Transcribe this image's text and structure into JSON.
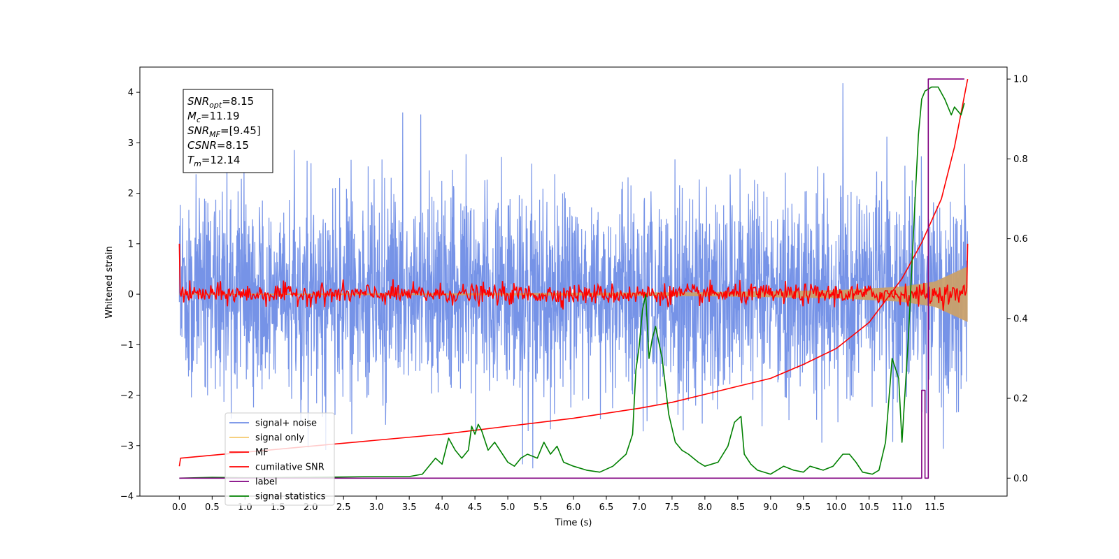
{
  "chart_data": {
    "type": "line",
    "xlabel": "Time (s)",
    "ylabel": "Whitened strain",
    "xlim": [
      -0.6,
      12.6
    ],
    "ylim": [
      -4.0,
      4.5
    ],
    "y2lim": [
      -0.045,
      1.03
    ],
    "xticks": [
      "0.0",
      "0.5",
      "1.0",
      "1.5",
      "2.0",
      "2.5",
      "3.0",
      "3.5",
      "4.0",
      "4.5",
      "5.0",
      "5.5",
      "6.0",
      "6.5",
      "7.0",
      "7.5",
      "8.0",
      "8.5",
      "9.0",
      "9.5",
      "10.0",
      "10.5",
      "11.0",
      "11.5"
    ],
    "yticks": [
      "4",
      "3",
      "2",
      "1",
      "0",
      "−1",
      "−2",
      "−3",
      "−4"
    ],
    "y2ticks": [
      "1.0",
      "0.8",
      "0.6",
      "0.4",
      "0.2",
      "0.0"
    ],
    "info_box": [
      {
        "sym": "SNR",
        "sub": "opt",
        "val": "=8.15"
      },
      {
        "sym": "M",
        "sub": "c",
        "val": "=11.19"
      },
      {
        "sym": "SNR",
        "sub": "MF",
        "val": "=[9.45]"
      },
      {
        "sym": "CSNR",
        "sub": "",
        "val": "=8.15"
      },
      {
        "sym": "T",
        "sub": "m",
        "val": "=12.14"
      }
    ],
    "legend": [
      {
        "label": "signal+ noise",
        "color": "#6f8de6"
      },
      {
        "label": "signal only",
        "color": "#f5c96e"
      },
      {
        "label": "MF",
        "color": "#ff0000"
      },
      {
        "label": "cumilative SNR",
        "color": "#ff0000"
      },
      {
        "label": "label",
        "color": "#800080"
      },
      {
        "label": "signal statistics",
        "color": "#008000"
      }
    ],
    "series": [
      {
        "name": "signal+ noise",
        "axis": "left",
        "color": "#6f8de6",
        "kind": "noise",
        "x_range": [
          0.0,
          12.0
        ],
        "amplitude_approx": 2.0,
        "peak_values": [
          4.18,
          -3.6
        ]
      },
      {
        "name": "signal only",
        "axis": "left",
        "color": "#c9a06a",
        "kind": "envelope",
        "x": [
          0.0,
          4.0,
          8.0,
          10.0,
          11.0,
          11.5,
          12.0
        ],
        "y": [
          0.01,
          0.02,
          0.04,
          0.08,
          0.15,
          0.25,
          0.55
        ]
      },
      {
        "name": "MF",
        "axis": "left",
        "color": "#ff0000",
        "kind": "noise-small",
        "x_range": [
          0.0,
          12.0
        ],
        "amplitude_approx": 0.1,
        "start_value": 1.0,
        "end_value": 1.0
      },
      {
        "name": "cumilative SNR",
        "axis": "right",
        "color": "#ff0000",
        "x": [
          0.0,
          0.02,
          1.0,
          2.0,
          3.0,
          4.0,
          5.0,
          6.0,
          7.0,
          7.5,
          8.0,
          8.5,
          9.0,
          9.5,
          10.0,
          10.5,
          11.0,
          11.3,
          11.6,
          11.8,
          12.0
        ],
        "y": [
          0.03,
          0.05,
          0.065,
          0.08,
          0.095,
          0.11,
          0.13,
          0.15,
          0.175,
          0.19,
          0.21,
          0.23,
          0.25,
          0.285,
          0.325,
          0.39,
          0.5,
          0.59,
          0.7,
          0.83,
          1.0
        ]
      },
      {
        "name": "label",
        "axis": "right",
        "color": "#800080",
        "x": [
          0.0,
          11.3,
          11.3,
          11.35,
          11.35,
          11.4,
          11.4,
          11.95
        ],
        "y": [
          0.0,
          0.0,
          0.22,
          0.22,
          0.0,
          0.0,
          1.0,
          1.0
        ]
      },
      {
        "name": "signal statistics",
        "axis": "right",
        "color": "#008000",
        "x": [
          0.0,
          0.5,
          1.0,
          2.0,
          3.0,
          3.5,
          3.7,
          3.9,
          4.0,
          4.1,
          4.2,
          4.3,
          4.4,
          4.45,
          4.5,
          4.55,
          4.6,
          4.7,
          4.8,
          5.0,
          5.1,
          5.2,
          5.3,
          5.45,
          5.55,
          5.65,
          5.75,
          5.85,
          6.0,
          6.2,
          6.4,
          6.6,
          6.8,
          6.9,
          6.95,
          7.0,
          7.05,
          7.1,
          7.15,
          7.2,
          7.25,
          7.35,
          7.45,
          7.55,
          7.65,
          7.75,
          7.9,
          8.0,
          8.2,
          8.35,
          8.45,
          8.55,
          8.6,
          8.7,
          8.8,
          9.0,
          9.2,
          9.35,
          9.5,
          9.6,
          9.8,
          9.95,
          10.1,
          10.2,
          10.3,
          10.4,
          10.55,
          10.65,
          10.75,
          10.85,
          10.95,
          11.0,
          11.1,
          11.2,
          11.25,
          11.3,
          11.35,
          11.45,
          11.55,
          11.65,
          11.75,
          11.8,
          11.9,
          11.95
        ],
        "y": [
          0.0,
          0.002,
          0.001,
          0.002,
          0.004,
          0.004,
          0.01,
          0.05,
          0.035,
          0.1,
          0.07,
          0.05,
          0.07,
          0.13,
          0.11,
          0.135,
          0.12,
          0.07,
          0.09,
          0.04,
          0.03,
          0.05,
          0.06,
          0.05,
          0.09,
          0.06,
          0.08,
          0.04,
          0.03,
          0.02,
          0.015,
          0.03,
          0.06,
          0.11,
          0.27,
          0.33,
          0.42,
          0.46,
          0.3,
          0.35,
          0.38,
          0.3,
          0.16,
          0.09,
          0.07,
          0.06,
          0.04,
          0.03,
          0.04,
          0.08,
          0.14,
          0.155,
          0.06,
          0.035,
          0.02,
          0.01,
          0.03,
          0.02,
          0.015,
          0.03,
          0.02,
          0.03,
          0.06,
          0.06,
          0.04,
          0.015,
          0.01,
          0.02,
          0.09,
          0.3,
          0.25,
          0.09,
          0.36,
          0.7,
          0.86,
          0.95,
          0.97,
          0.98,
          0.98,
          0.95,
          0.91,
          0.93,
          0.91,
          0.94
        ]
      }
    ]
  }
}
